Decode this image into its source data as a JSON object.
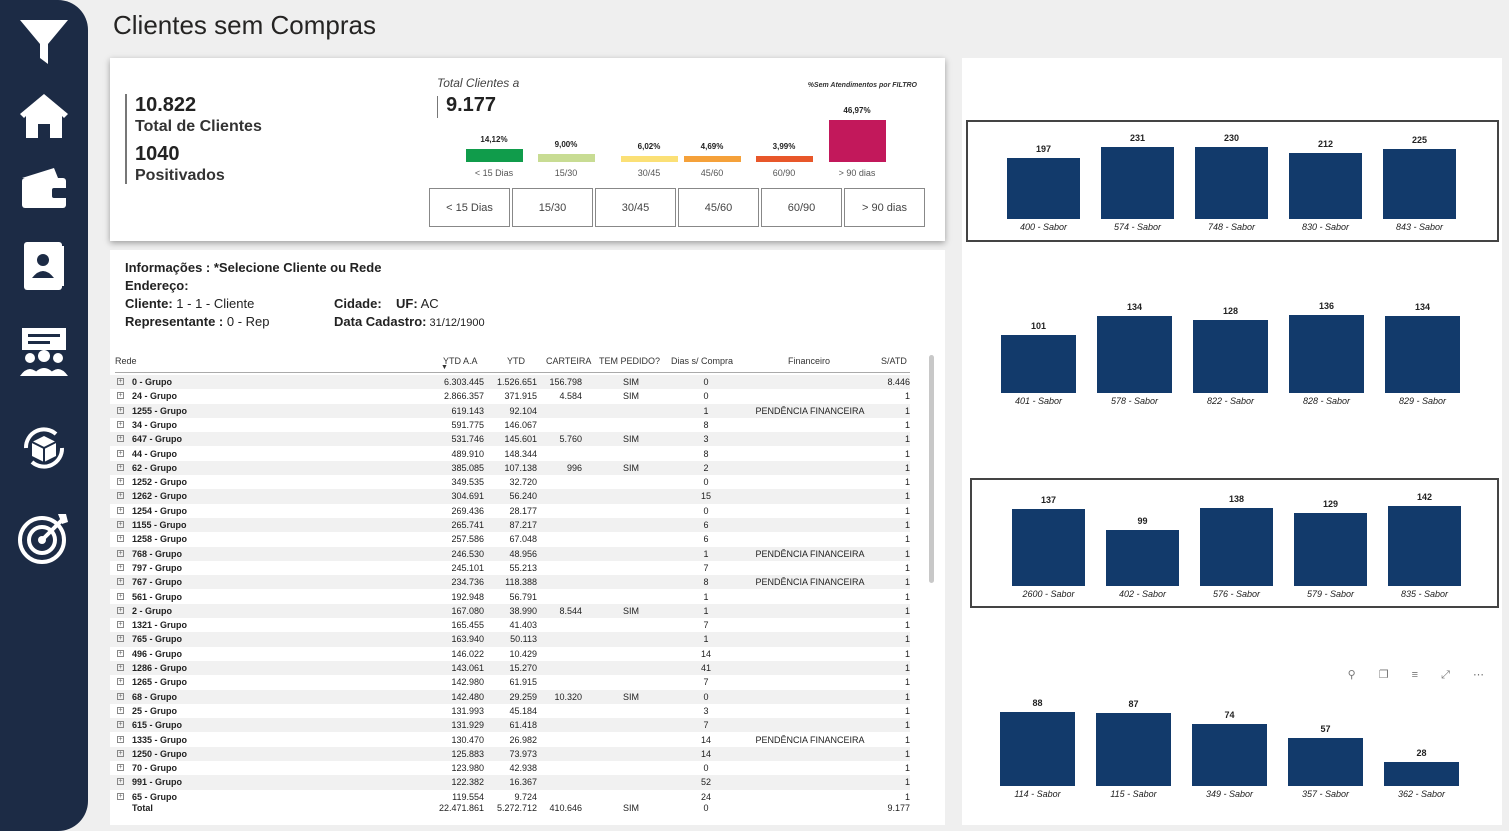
{
  "page_title": "Clientes sem Compras",
  "nav": [
    {
      "icon": "filter-icon"
    },
    {
      "icon": "home-icon"
    },
    {
      "icon": "wallet-icon"
    },
    {
      "icon": "contact-card-icon"
    },
    {
      "icon": "team-presentation-icon"
    },
    {
      "icon": "box-cycle-icon"
    },
    {
      "icon": "target-icon"
    }
  ],
  "kpi": {
    "total_clientes_value": "10.822",
    "total_clientes_label": "Total de Clientes",
    "positivados_value": "1040",
    "positivados_label": "Positivados",
    "total_clientes_a_label": "Total Clientes a",
    "total_clientes_a_value": "9.177",
    "mini_chart_title": "%Sem Atendimentos por FILTRO"
  },
  "mini_chart": [
    {
      "label": "< 15 Dias",
      "pct": "14,12%",
      "value": 14.12,
      "color": "#109c4b"
    },
    {
      "label": "15/30",
      "pct": "9,00%",
      "value": 9.0,
      "color": "#c8dc93"
    },
    {
      "label": "30/45",
      "pct": "6,02%",
      "value": 6.02,
      "color": "#fbe076"
    },
    {
      "label": "45/60",
      "pct": "4,69%",
      "value": 4.69,
      "color": "#f5a13a"
    },
    {
      "label": "60/90",
      "pct": "3,99%",
      "value": 3.99,
      "color": "#e8572a"
    },
    {
      "label": "> 90 dias",
      "pct": "46,97%",
      "value": 46.97,
      "color": "#c2185b"
    }
  ],
  "segments": [
    "< 15 Dias",
    "15/30",
    "30/45",
    "45/60",
    "60/90",
    "> 90 dias"
  ],
  "info": {
    "line1": "Informações :  *Selecione Cliente ou Rede",
    "endereco_label": "Endereço:",
    "cliente_label": "Cliente:",
    "cliente_value": " 1 - 1 - Cliente",
    "cidade_label": "Cidade:",
    "uf_label": "UF:",
    "uf_value": " AC",
    "rep_label": "Representante :",
    "rep_value": " 0 - Rep",
    "data_label": "Data Cadastro:",
    "data_value": " 31/12/1900"
  },
  "table": {
    "headers": [
      "Rede",
      "YTD A.A",
      "YTD",
      "CARTEIRA",
      "TEM PEDIDO?",
      "Dias s/ Compra",
      "Financeiro",
      "S/ATD"
    ],
    "rows": [
      [
        "0 - Grupo",
        "6.303.445",
        "1.526.651",
        "156.798",
        "SIM",
        "0",
        "",
        "8.446"
      ],
      [
        "24 - Grupo",
        "2.866.357",
        "371.915",
        "4.584",
        "SIM",
        "0",
        "",
        "1"
      ],
      [
        "1255 - Grupo",
        "619.143",
        "92.104",
        "",
        "",
        "1",
        "PENDÊNCIA FINANCEIRA",
        "1"
      ],
      [
        "34 - Grupo",
        "591.775",
        "146.067",
        "",
        "",
        "8",
        "",
        "1"
      ],
      [
        "647 - Grupo",
        "531.746",
        "145.601",
        "5.760",
        "SIM",
        "3",
        "",
        "1"
      ],
      [
        "44 - Grupo",
        "489.910",
        "148.344",
        "",
        "",
        "8",
        "",
        "1"
      ],
      [
        "62 - Grupo",
        "385.085",
        "107.138",
        "996",
        "SIM",
        "2",
        "",
        "1"
      ],
      [
        "1252 - Grupo",
        "349.535",
        "32.720",
        "",
        "",
        "0",
        "",
        "1"
      ],
      [
        "1262 - Grupo",
        "304.691",
        "56.240",
        "",
        "",
        "15",
        "",
        "1"
      ],
      [
        "1254 - Grupo",
        "269.436",
        "28.177",
        "",
        "",
        "0",
        "",
        "1"
      ],
      [
        "1155 - Grupo",
        "265.741",
        "87.217",
        "",
        "",
        "6",
        "",
        "1"
      ],
      [
        "1258 - Grupo",
        "257.586",
        "67.048",
        "",
        "",
        "6",
        "",
        "1"
      ],
      [
        "768 - Grupo",
        "246.530",
        "48.956",
        "",
        "",
        "1",
        "PENDÊNCIA FINANCEIRA",
        "1"
      ],
      [
        "797 - Grupo",
        "245.101",
        "55.213",
        "",
        "",
        "7",
        "",
        "1"
      ],
      [
        "767 - Grupo",
        "234.736",
        "118.388",
        "",
        "",
        "8",
        "PENDÊNCIA FINANCEIRA",
        "1"
      ],
      [
        "561 - Grupo",
        "192.948",
        "56.791",
        "",
        "",
        "1",
        "",
        "1"
      ],
      [
        "2 - Grupo",
        "167.080",
        "38.990",
        "8.544",
        "SIM",
        "1",
        "",
        "1"
      ],
      [
        "1321 - Grupo",
        "165.455",
        "41.403",
        "",
        "",
        "7",
        "",
        "1"
      ],
      [
        "765 - Grupo",
        "163.940",
        "50.113",
        "",
        "",
        "1",
        "",
        "1"
      ],
      [
        "496 - Grupo",
        "146.022",
        "10.429",
        "",
        "",
        "14",
        "",
        "1"
      ],
      [
        "1286 - Grupo",
        "143.061",
        "15.270",
        "",
        "",
        "41",
        "",
        "1"
      ],
      [
        "1265 - Grupo",
        "142.980",
        "61.915",
        "",
        "",
        "7",
        "",
        "1"
      ],
      [
        "68 - Grupo",
        "142.480",
        "29.259",
        "10.320",
        "SIM",
        "0",
        "",
        "1"
      ],
      [
        "25 - Grupo",
        "131.993",
        "45.184",
        "",
        "",
        "3",
        "",
        "1"
      ],
      [
        "615 - Grupo",
        "131.929",
        "61.418",
        "",
        "",
        "7",
        "",
        "1"
      ],
      [
        "1335 - Grupo",
        "130.470",
        "26.982",
        "",
        "",
        "14",
        "PENDÊNCIA FINANCEIRA",
        "1"
      ],
      [
        "1250 - Grupo",
        "125.883",
        "73.973",
        "",
        "",
        "14",
        "",
        "1"
      ],
      [
        "70 - Grupo",
        "123.980",
        "42.938",
        "",
        "",
        "0",
        "",
        "1"
      ],
      [
        "991 - Grupo",
        "122.382",
        "16.367",
        "",
        "",
        "52",
        "",
        "1"
      ],
      [
        "65 - Grupo",
        "119.554",
        "9.724",
        "",
        "",
        "24",
        "",
        "1"
      ]
    ],
    "total": [
      "Total",
      "22.471.861",
      "5.272.712",
      "410.646",
      "SIM",
      "0",
      "",
      "9.177"
    ]
  },
  "chart_data": [
    {
      "type": "bar",
      "categories": [
        "400 - Sabor",
        "574 - Sabor",
        "748 - Sabor",
        "830 - Sabor",
        "843 - Sabor"
      ],
      "values": [
        197,
        231,
        230,
        212,
        225
      ]
    },
    {
      "type": "bar",
      "categories": [
        "401 - Sabor",
        "578 - Sabor",
        "822 - Sabor",
        "828 - Sabor",
        "829 - Sabor"
      ],
      "values": [
        101,
        134,
        128,
        136,
        134
      ]
    },
    {
      "type": "bar",
      "categories": [
        "2600 - Sabor",
        "402 - Sabor",
        "576 - Sabor",
        "579 - Sabor",
        "835 - Sabor"
      ],
      "values": [
        137,
        99,
        138,
        129,
        142
      ]
    },
    {
      "type": "bar",
      "categories": [
        "114 - Sabor",
        "115 - Sabor",
        "349 - Sabor",
        "357 - Sabor",
        "362 - Sabor"
      ],
      "values": [
        88,
        87,
        74,
        57,
        28
      ]
    }
  ],
  "visual_tools": "⚲ ❐ ≡ ⤢ ⋯"
}
